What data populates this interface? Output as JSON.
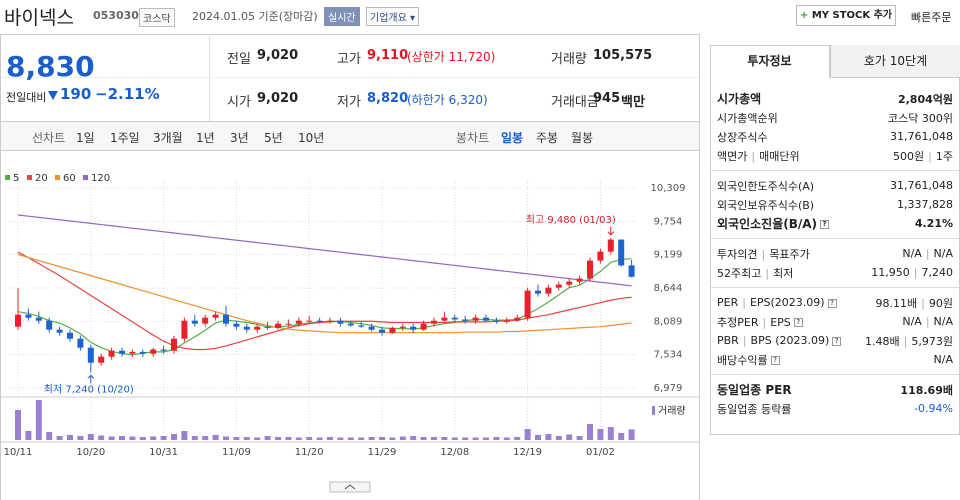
{
  "header": {
    "name": "바이넥스",
    "code": "053030",
    "market": "코스닥",
    "date": "2024.01.05 기준(장마감)",
    "realtime": "실시간",
    "overview": "기업개요",
    "mystock": "MY STOCK 추가",
    "quick_order": "빠른주문"
  },
  "quote": {
    "price": "8,830",
    "change_label": "전일대비",
    "change": "190",
    "change_pct": "−2.11%"
  },
  "stats": [
    {
      "label": "전일",
      "value": "9,020"
    },
    {
      "label": "고가",
      "value": "9,110",
      "note": "(상한가 11,720)",
      "color": "#e0161e"
    },
    {
      "label": "거래량",
      "value": "105,575"
    },
    {
      "label": "시가",
      "value": "9,020"
    },
    {
      "label": "저가",
      "value": "8,820",
      "note": "(하한가 6,320)",
      "color": "#1a5dcc"
    },
    {
      "label": "거래대금",
      "value": "945",
      "unit": "백만"
    }
  ],
  "chart_tabs": {
    "line_label": "선차트",
    "line_periods": [
      "1일",
      "1주일",
      "3개월",
      "1년",
      "3년",
      "5년",
      "10년"
    ],
    "candle_label": "봉차트",
    "candle_periods": [
      "일봉",
      "주봉",
      "월봉"
    ],
    "active_candle": 0
  },
  "chart_data": {
    "type": "candlestick",
    "categories": [
      "10/11",
      null,
      null,
      null,
      null,
      null,
      null,
      "10/20",
      null,
      null,
      null,
      null,
      null,
      null,
      "10/31",
      null,
      null,
      null,
      null,
      null,
      null,
      "11/09",
      null,
      null,
      null,
      null,
      null,
      null,
      "11/20",
      null,
      null,
      null,
      null,
      null,
      null,
      "11/29",
      null,
      null,
      null,
      null,
      null,
      null,
      "12/08",
      null,
      null,
      null,
      null,
      null,
      null,
      "12/19",
      null,
      null,
      null,
      null,
      null,
      null,
      "01/02",
      null,
      null,
      null
    ],
    "open": [
      8000,
      8200,
      8150,
      8100,
      7950,
      7900,
      7800,
      7650,
      7400,
      7500,
      7600,
      7550,
      7580,
      7550,
      7620,
      7600,
      7800,
      8100,
      8050,
      8150,
      8200,
      8050,
      8000,
      7950,
      8000,
      7980,
      8050,
      8050,
      8100,
      8100,
      8080,
      8100,
      8050,
      8020,
      8000,
      7950,
      7900,
      7980,
      8000,
      7950,
      8050,
      8100,
      8150,
      8120,
      8100,
      8150,
      8100,
      8080,
      8100,
      8150,
      8600,
      8550,
      8650,
      8700,
      8750,
      8800,
      9100,
      9250,
      9450,
      9020
    ],
    "high": [
      8640,
      8300,
      8250,
      8150,
      8000,
      7950,
      7850,
      7700,
      7550,
      7650,
      7650,
      7620,
      7620,
      7650,
      7680,
      7850,
      8150,
      8200,
      8200,
      8250,
      8350,
      8100,
      8050,
      8050,
      8080,
      8100,
      8120,
      8150,
      8180,
      8150,
      8150,
      8150,
      8100,
      8080,
      8050,
      8000,
      8000,
      8050,
      8050,
      8100,
      8150,
      8250,
      8200,
      8180,
      8200,
      8200,
      8150,
      8150,
      8200,
      8650,
      8700,
      8700,
      8750,
      8800,
      8850,
      9150,
      9300,
      9480,
      9450,
      9110
    ],
    "low": [
      7950,
      8100,
      8050,
      7900,
      7850,
      7750,
      7600,
      7240,
      7350,
      7450,
      7500,
      7500,
      7500,
      7500,
      7550,
      7550,
      7750,
      8000,
      8000,
      8100,
      8000,
      7950,
      7900,
      7900,
      7950,
      7950,
      8000,
      8000,
      8050,
      8050,
      8050,
      8000,
      8000,
      7980,
      7920,
      7850,
      7880,
      7930,
      7900,
      7930,
      8000,
      8080,
      8080,
      8050,
      8050,
      8080,
      8050,
      8050,
      8080,
      8100,
      8500,
      8500,
      8600,
      8650,
      8700,
      8750,
      9050,
      9200,
      9000,
      8820
    ],
    "close": [
      8200,
      8150,
      8100,
      7950,
      7900,
      7800,
      7650,
      7400,
      7500,
      7600,
      7550,
      7580,
      7550,
      7620,
      7600,
      7800,
      8100,
      8050,
      8150,
      8200,
      8050,
      8000,
      7950,
      8000,
      7980,
      8050,
      8050,
      8100,
      8100,
      8080,
      8100,
      8050,
      8020,
      8000,
      7950,
      7900,
      7980,
      8000,
      7950,
      8050,
      8100,
      8150,
      8120,
      8100,
      8150,
      8100,
      8080,
      8100,
      8150,
      8600,
      8550,
      8650,
      8700,
      8750,
      8800,
      9100,
      9250,
      9450,
      9020,
      8830
    ],
    "volume": [
      300000,
      90000,
      400000,
      80000,
      40000,
      50000,
      40000,
      60000,
      45000,
      35000,
      40000,
      35000,
      30000,
      35000,
      40000,
      60000,
      90000,
      40000,
      40000,
      50000,
      35000,
      30000,
      30000,
      25000,
      40000,
      30000,
      30000,
      25000,
      30000,
      25000,
      30000,
      25000,
      25000,
      25000,
      30000,
      30000,
      25000,
      35000,
      40000,
      30000,
      30000,
      30000,
      25000,
      25000,
      25000,
      25000,
      30000,
      25000,
      30000,
      110000,
      50000,
      60000,
      40000,
      55000,
      40000,
      160000,
      110000,
      130000,
      70000,
      105575
    ],
    "up_color": "#e8222b",
    "down_color": "#1f63cf",
    "volume_color": "#9b7fd0",
    "volume_label": "거래량",
    "series": [
      {
        "name": "5",
        "color": "#52b043",
        "values": [
          8250,
          8220,
          8170,
          8100,
          8060,
          7980,
          7880,
          7740,
          7650,
          7590,
          7550,
          7530,
          7560,
          7580,
          7580,
          7620,
          7730,
          7830,
          7940,
          8060,
          8110,
          8090,
          8070,
          8040,
          7990,
          8000,
          8010,
          8040,
          8060,
          8080,
          8090,
          8090,
          8070,
          8050,
          8020,
          7980,
          7970,
          7970,
          7960,
          7980,
          8020,
          8050,
          8070,
          8100,
          8120,
          8120,
          8110,
          8110,
          8120,
          8210,
          8300,
          8410,
          8530,
          8650,
          8690,
          8800,
          8920,
          9070,
          9120,
          9130
        ]
      },
      {
        "name": "20",
        "color": "#e4453e",
        "values": [
          9240,
          9150,
          9050,
          8950,
          8850,
          8740,
          8630,
          8520,
          8410,
          8300,
          8190,
          8080,
          7970,
          7860,
          7760,
          7680,
          7640,
          7620,
          7620,
          7640,
          7680,
          7730,
          7780,
          7830,
          7880,
          7930,
          7980,
          8020,
          8050,
          8070,
          8080,
          8090,
          8090,
          8090,
          8090,
          8080,
          8070,
          8070,
          8070,
          8070,
          8070,
          8070,
          8080,
          8080,
          8080,
          8080,
          8090,
          8100,
          8110,
          8140,
          8170,
          8200,
          8240,
          8280,
          8320,
          8360,
          8400,
          8440,
          8470,
          8490
        ]
      },
      {
        "name": "60",
        "color": "#f0902e",
        "values": [
          9200,
          9150,
          9100,
          9050,
          9000,
          8950,
          8900,
          8850,
          8800,
          8750,
          8700,
          8650,
          8600,
          8550,
          8500,
          8450,
          8400,
          8350,
          8300,
          8250,
          8200,
          8150,
          8100,
          8060,
          8020,
          7990,
          7960,
          7940,
          7930,
          7920,
          7910,
          7900,
          7900,
          7900,
          7900,
          7900,
          7900,
          7900,
          7900,
          7900,
          7900,
          7900,
          7900,
          7910,
          7910,
          7910,
          7910,
          7920,
          7920,
          7930,
          7940,
          7950,
          7960,
          7970,
          7980,
          7990,
          8000,
          8020,
          8040,
          8060
        ]
      },
      {
        "name": "120",
        "color": "#9166c4",
        "values": [
          9860,
          9840,
          9820,
          9800,
          9780,
          9760,
          9740,
          9720,
          9700,
          9680,
          9660,
          9640,
          9620,
          9600,
          9580,
          9560,
          9540,
          9520,
          9500,
          9480,
          9460,
          9440,
          9420,
          9400,
          9380,
          9360,
          9340,
          9320,
          9300,
          9280,
          9260,
          9240,
          9220,
          9200,
          9180,
          9160,
          9140,
          9120,
          9100,
          9080,
          9060,
          9040,
          9020,
          9000,
          8980,
          8960,
          8940,
          8920,
          8900,
          8880,
          8860,
          8840,
          8820,
          8800,
          8780,
          8760,
          8740,
          8720,
          8700,
          8680
        ]
      }
    ],
    "annotations": {
      "high": "최고 9,480 (01/03)",
      "low": "최저 7,240 (10/20)"
    },
    "ylim": [
      6979,
      10309
    ],
    "yticks": [
      {
        "value": 10309,
        "label": "10,309"
      },
      {
        "value": 9754,
        "label": "9,754"
      },
      {
        "value": 9199,
        "label": "9,199"
      },
      {
        "value": 8644,
        "label": "8,644"
      },
      {
        "value": 8089,
        "label": "8,089"
      },
      {
        "value": 7534,
        "label": "7,534"
      },
      {
        "value": 6979,
        "label": "6,979"
      }
    ],
    "grid": true
  },
  "right_panel": {
    "tabs": [
      "투자정보",
      "호가 10단계"
    ],
    "sections": [
      [
        {
          "label": [
            "시가총액"
          ],
          "value": [
            "2,804억원"
          ],
          "bold": true
        },
        {
          "label": [
            "시가총액순위"
          ],
          "value": [
            "코스닥 300위"
          ]
        },
        {
          "label": [
            "상장주식수"
          ],
          "value": [
            "31,761,048"
          ]
        },
        {
          "label": [
            "액면가",
            "매매단위"
          ],
          "value": [
            "500원",
            "1주"
          ]
        }
      ],
      [
        {
          "label": [
            "외국인한도주식수(A)"
          ],
          "value": [
            "31,761,048"
          ]
        },
        {
          "label": [
            "외국인보유주식수(B)"
          ],
          "value": [
            "1,337,828"
          ]
        },
        {
          "label": [
            "외국인소진율(B/A)"
          ],
          "value": [
            "4.21%"
          ],
          "bold": true,
          "help": true
        }
      ],
      [
        {
          "label": [
            "투자의견",
            "목표주가"
          ],
          "value": [
            "N/A",
            "N/A"
          ]
        },
        {
          "label": [
            "52주최고",
            "최저"
          ],
          "value": [
            "11,950",
            "7,240"
          ]
        }
      ],
      [
        {
          "label": [
            "PER",
            "EPS(2023.09)"
          ],
          "value": [
            "98.11배",
            "90원"
          ],
          "help": true
        },
        {
          "label": [
            "추정PER",
            "EPS"
          ],
          "value": [
            "N/A",
            "N/A"
          ],
          "help": true
        },
        {
          "label": [
            "PBR",
            "BPS (2023.09)"
          ],
          "value": [
            "1.48배",
            "5,973원"
          ],
          "help": true
        },
        {
          "label": [
            "배당수익률"
          ],
          "value": [
            "N/A"
          ],
          "help": true
        }
      ],
      [
        {
          "label": [
            "동일업종 PER"
          ],
          "value": [
            "118.69배"
          ],
          "bold": true
        },
        {
          "label": [
            "동일업종 등락률"
          ],
          "value": [
            "-0.94%"
          ],
          "color": "#1a5dcc"
        }
      ]
    ]
  }
}
